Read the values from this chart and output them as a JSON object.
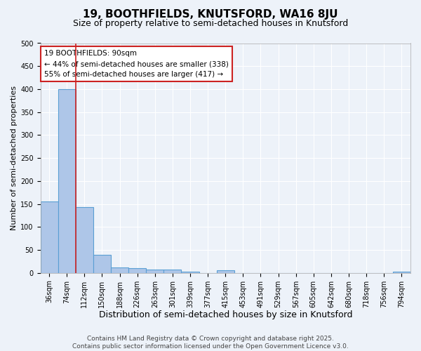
{
  "title1": "19, BOOTHFIELDS, KNUTSFORD, WA16 8JU",
  "title2": "Size of property relative to semi-detached houses in Knutsford",
  "xlabel": "Distribution of semi-detached houses by size in Knutsford",
  "ylabel": "Number of semi-detached properties",
  "footer1": "Contains HM Land Registry data © Crown copyright and database right 2025.",
  "footer2": "Contains public sector information licensed under the Open Government Licence v3.0.",
  "categories": [
    "36sqm",
    "74sqm",
    "112sqm",
    "150sqm",
    "188sqm",
    "226sqm",
    "263sqm",
    "301sqm",
    "339sqm",
    "377sqm",
    "415sqm",
    "453sqm",
    "491sqm",
    "529sqm",
    "567sqm",
    "605sqm",
    "642sqm",
    "680sqm",
    "718sqm",
    "756sqm",
    "794sqm"
  ],
  "values": [
    155,
    400,
    143,
    40,
    12,
    10,
    8,
    7,
    2,
    0,
    6,
    0,
    0,
    0,
    0,
    0,
    0,
    0,
    0,
    0,
    3
  ],
  "bar_color": "#aec6e8",
  "bar_edge_color": "#5a9fd4",
  "bar_linewidth": 0.8,
  "vline_color": "#cc2222",
  "annotation_text": "19 BOOTHFIELDS: 90sqm\n← 44% of semi-detached houses are smaller (338)\n55% of semi-detached houses are larger (417) →",
  "annotation_box_facecolor": "#ffffff",
  "annotation_box_edgecolor": "#cc2222",
  "ylim": [
    0,
    500
  ],
  "yticks": [
    0,
    50,
    100,
    150,
    200,
    250,
    300,
    350,
    400,
    450,
    500
  ],
  "bg_color": "#edf2f9",
  "plot_bg_color": "#edf2f9",
  "grid_color": "#ffffff",
  "title1_fontsize": 11,
  "title2_fontsize": 9,
  "xlabel_fontsize": 9,
  "ylabel_fontsize": 8,
  "tick_fontsize": 7,
  "annot_fontsize": 7.5,
  "footer_fontsize": 6.5
}
